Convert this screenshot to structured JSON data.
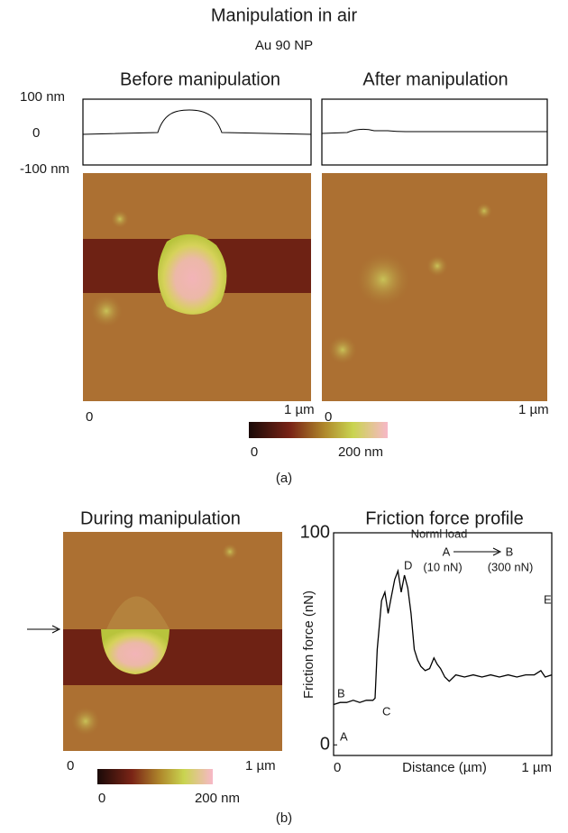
{
  "title": "Manipulation in air",
  "subtitle": "Au 90 NP",
  "panel_a": {
    "label": "(a)",
    "before_title": "Before manipulation",
    "after_title": "After manipulation",
    "profile_ticks": [
      "100 nm",
      "0",
      "-100 nm"
    ],
    "before_axis": [
      "0",
      "1 µm"
    ],
    "after_axis": [
      "0",
      "1 µm"
    ],
    "colorbar": [
      "0",
      "200 nm"
    ]
  },
  "panel_b": {
    "label": "(b)",
    "image_title": "During manipulation",
    "image_axis": [
      "0",
      "1 µm"
    ],
    "colorbar": [
      "0",
      "200 nm"
    ]
  },
  "chart_data": {
    "type": "line",
    "title": "Friction force profile",
    "xlabel": "Distance (µm)",
    "ylabel": "Friction force (nN)",
    "x": [
      0,
      0.03,
      0.06,
      0.09,
      0.12,
      0.15,
      0.18,
      0.19,
      0.2,
      0.22,
      0.235,
      0.25,
      0.265,
      0.28,
      0.295,
      0.31,
      0.325,
      0.34,
      0.355,
      0.37,
      0.385,
      0.4,
      0.42,
      0.44,
      0.46,
      0.475,
      0.49,
      0.51,
      0.53,
      0.56,
      0.6,
      0.64,
      0.68,
      0.72,
      0.76,
      0.8,
      0.84,
      0.88,
      0.92,
      0.95,
      0.97,
      1.0
    ],
    "series": [
      {
        "color": "#000000",
        "values": [
          19,
          20,
          20,
          21,
          20,
          21,
          21,
          22,
          45,
          68,
          72,
          62,
          70,
          78,
          82,
          72,
          80,
          74,
          62,
          45,
          40,
          37,
          35,
          36,
          41,
          38,
          36,
          32,
          30,
          33,
          32,
          33,
          32,
          33,
          32,
          33,
          32,
          33,
          33,
          35,
          32,
          33
        ]
      }
    ],
    "xlim": [
      0,
      1
    ],
    "xticks": [
      0,
      {
        "value": 1,
        "label": "1 µm"
      }
    ],
    "ylim": [
      -5,
      100
    ],
    "yticks": [
      0,
      100
    ],
    "annotations": [
      "B",
      "C",
      "D",
      "E",
      "A",
      "Norml load",
      "A",
      "B",
      "(10 nN)",
      "(300 nN)"
    ]
  }
}
